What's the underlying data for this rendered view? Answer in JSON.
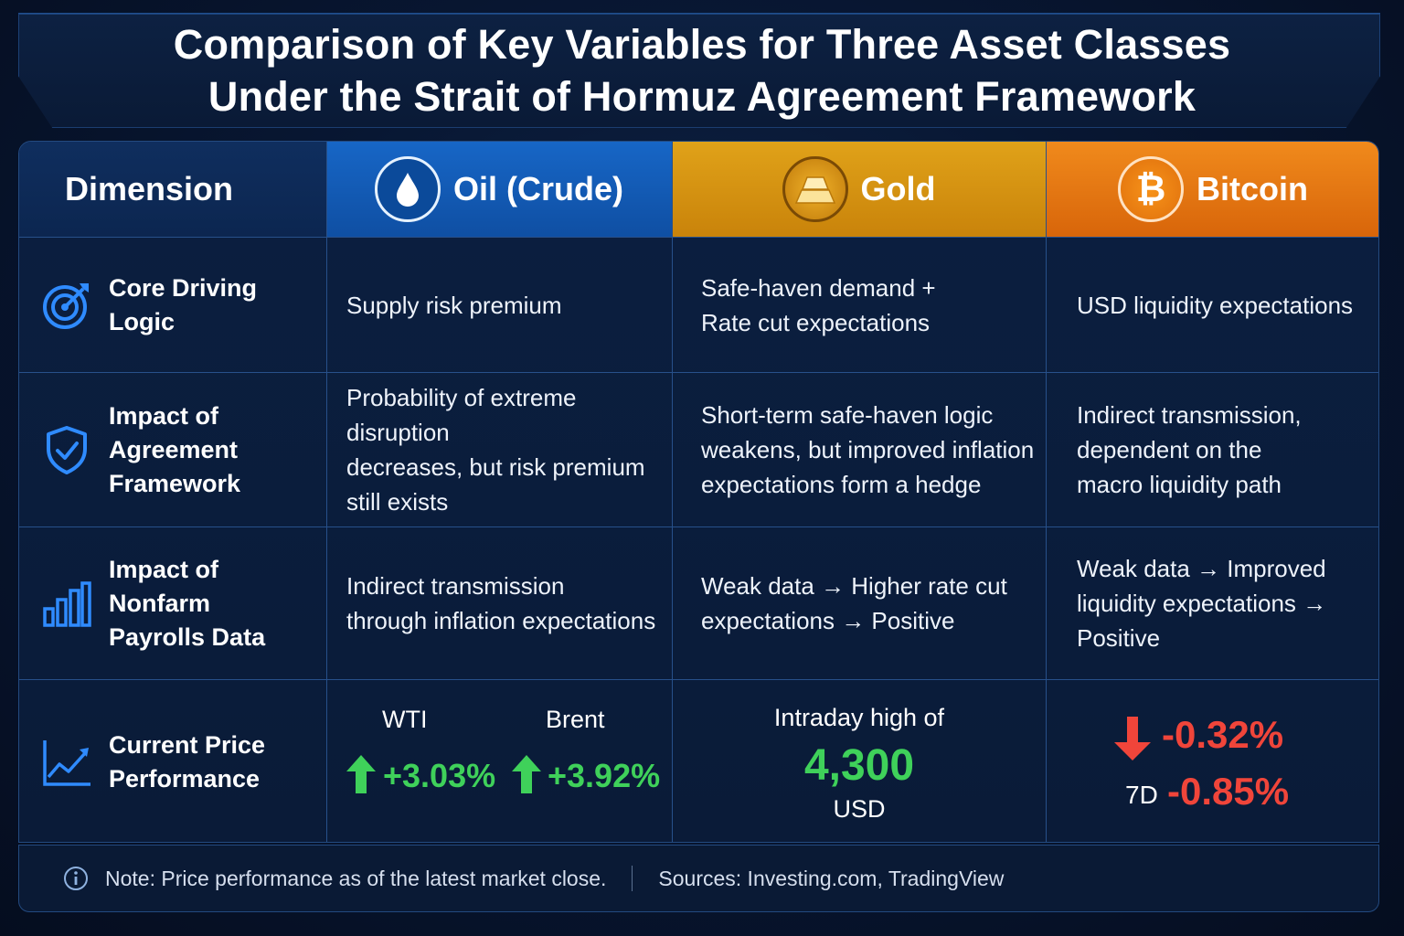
{
  "title": {
    "line1": "Comparison of Key Variables for Three Asset Classes",
    "line2": "Under the Strait of Hormuz Agreement Framework"
  },
  "header": {
    "dimension": "Dimension",
    "oil": "Oil (Crude)",
    "gold": "Gold",
    "bitcoin": "Bitcoin",
    "bitcoin_symbol": "₿"
  },
  "rows": [
    {
      "icon": "target-icon",
      "dimension": [
        "Core Driving",
        "Logic"
      ],
      "oil": [
        "Supply risk premium"
      ],
      "gold": [
        "Safe-haven demand +",
        "Rate cut expectations"
      ],
      "bitcoin": [
        "USD liquidity expectations"
      ]
    },
    {
      "icon": "shield-check-icon",
      "dimension": [
        "Impact of Agreement",
        "Framework"
      ],
      "oil": [
        "Probability of extreme disruption",
        "decreases, but risk premium",
        "still exists"
      ],
      "gold": [
        "Short-term safe-haven logic",
        "weakens, but improved inflation",
        "expectations form a hedge"
      ],
      "bitcoin": [
        "Indirect transmission,",
        "dependent on the",
        "macro liquidity path"
      ]
    },
    {
      "icon": "bar-chart-icon",
      "dimension": [
        "Impact of Nonfarm",
        "Payrolls Data"
      ],
      "oil": [
        "Indirect transmission",
        "through inflation expectations"
      ],
      "gold": [
        "Weak data → Higher rate cut",
        "expectations → Positive"
      ],
      "bitcoin": [
        "Weak data → Improved",
        "liquidity expectations →",
        "Positive"
      ]
    },
    {
      "icon": "trend-line-icon",
      "dimension": [
        "Current Price",
        "Performance"
      ]
    }
  ],
  "price": {
    "oil": {
      "wti_label": "WTI",
      "wti_change": "+3.03%",
      "brent_label": "Brent",
      "brent_change": "+3.92%"
    },
    "gold": {
      "prefix": "Intraday high of",
      "value": "4,300",
      "unit": "USD"
    },
    "bitcoin": {
      "change": "-0.32%",
      "period_label": "7D",
      "period_change": "-0.85%"
    }
  },
  "footer": {
    "note": "Note: Price performance as of the latest market close.",
    "sources": "Sources: Investing.com, TradingView"
  },
  "colors": {
    "oil": "#1766c6",
    "gold": "#e0a219",
    "bitcoin": "#f08a1c",
    "positive": "#3fd15a",
    "negative": "#f0453a",
    "icon_blue": "#2f8bff"
  }
}
